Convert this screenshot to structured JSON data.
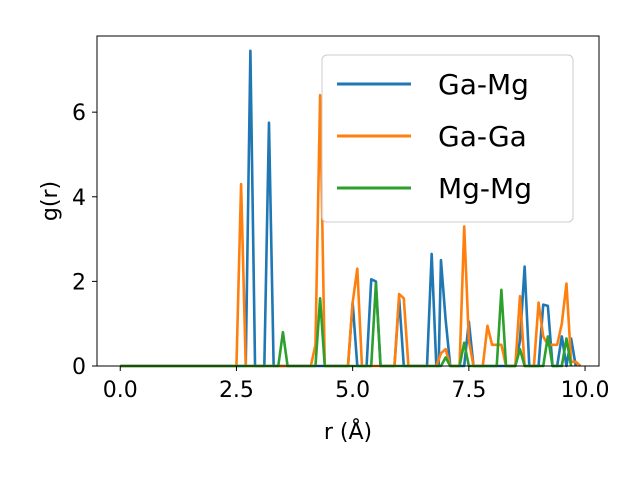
{
  "chart_data": {
    "type": "line",
    "title": "",
    "xlabel": "r (Å)",
    "ylabel": "g(r)",
    "xlim": [
      -0.5,
      10.3
    ],
    "ylim": [
      0,
      7.8
    ],
    "x_ticks": [
      0.0,
      2.5,
      5.0,
      7.5,
      10.0
    ],
    "x_tick_labels": [
      "0.0",
      "2.5",
      "5.0",
      "7.5",
      "10.0"
    ],
    "y_ticks": [
      0,
      2,
      4,
      6
    ],
    "y_tick_labels": [
      "0",
      "2",
      "4",
      "6"
    ],
    "grid": false,
    "legend_position": "top-right",
    "series": [
      {
        "name": "Ga-Mg",
        "color": "#1f77b4",
        "points": [
          [
            0.0,
            0
          ],
          [
            2.7,
            0
          ],
          [
            2.8,
            7.45
          ],
          [
            2.9,
            0
          ],
          [
            3.1,
            0
          ],
          [
            3.2,
            5.75
          ],
          [
            3.3,
            0
          ],
          [
            4.9,
            0
          ],
          [
            5.0,
            1.5
          ],
          [
            5.1,
            0
          ],
          [
            5.3,
            0
          ],
          [
            5.4,
            2.05
          ],
          [
            5.5,
            2.0
          ],
          [
            5.6,
            0
          ],
          [
            5.9,
            0
          ],
          [
            6.0,
            1.6
          ],
          [
            6.1,
            0
          ],
          [
            6.6,
            0
          ],
          [
            6.7,
            2.65
          ],
          [
            6.8,
            0
          ],
          [
            6.85,
            0
          ],
          [
            6.9,
            2.5
          ],
          [
            7.0,
            1.1
          ],
          [
            7.1,
            0
          ],
          [
            7.4,
            0
          ],
          [
            7.5,
            1.05
          ],
          [
            7.6,
            0
          ],
          [
            8.5,
            0
          ],
          [
            8.6,
            0.6
          ],
          [
            8.7,
            2.35
          ],
          [
            8.8,
            0
          ],
          [
            9.0,
            0
          ],
          [
            9.1,
            1.45
          ],
          [
            9.2,
            1.42
          ],
          [
            9.3,
            0
          ],
          [
            9.4,
            0
          ],
          [
            9.5,
            0.7
          ],
          [
            9.6,
            0
          ],
          [
            9.7,
            0.65
          ],
          [
            9.8,
            0
          ]
        ]
      },
      {
        "name": "Ga-Ga",
        "color": "#ff7f0e",
        "points": [
          [
            0.0,
            0
          ],
          [
            2.5,
            0
          ],
          [
            2.6,
            4.3
          ],
          [
            2.7,
            0
          ],
          [
            4.1,
            0
          ],
          [
            4.2,
            0.5
          ],
          [
            4.3,
            6.4
          ],
          [
            4.4,
            0
          ],
          [
            4.9,
            0
          ],
          [
            5.0,
            1.5
          ],
          [
            5.1,
            2.3
          ],
          [
            5.2,
            0
          ],
          [
            5.9,
            0
          ],
          [
            6.0,
            1.7
          ],
          [
            6.1,
            1.6
          ],
          [
            6.2,
            0
          ],
          [
            6.8,
            0
          ],
          [
            6.9,
            0.3
          ],
          [
            7.0,
            0.4
          ],
          [
            7.1,
            0
          ],
          [
            7.3,
            0
          ],
          [
            7.4,
            3.3
          ],
          [
            7.5,
            0.6
          ],
          [
            7.6,
            0
          ],
          [
            7.8,
            0
          ],
          [
            7.9,
            0.95
          ],
          [
            8.0,
            0.5
          ],
          [
            8.1,
            0.5
          ],
          [
            8.2,
            0.5
          ],
          [
            8.3,
            0
          ],
          [
            8.5,
            0
          ],
          [
            8.6,
            1.65
          ],
          [
            8.7,
            0
          ],
          [
            8.9,
            0
          ],
          [
            9.0,
            1.5
          ],
          [
            9.1,
            0.7
          ],
          [
            9.2,
            0.5
          ],
          [
            9.4,
            0.5
          ],
          [
            9.5,
            1.0
          ],
          [
            9.6,
            1.95
          ],
          [
            9.7,
            0.1
          ],
          [
            9.8,
            0.1
          ],
          [
            9.9,
            0
          ]
        ]
      },
      {
        "name": "Mg-Mg",
        "color": "#2ca02c",
        "points": [
          [
            0.0,
            0
          ],
          [
            3.4,
            0
          ],
          [
            3.5,
            0.8
          ],
          [
            3.6,
            0
          ],
          [
            4.2,
            0
          ],
          [
            4.3,
            1.6
          ],
          [
            4.4,
            0
          ],
          [
            5.4,
            0
          ],
          [
            5.5,
            1.95
          ],
          [
            5.6,
            0
          ],
          [
            6.9,
            0
          ],
          [
            7.0,
            0.2
          ],
          [
            7.1,
            0
          ],
          [
            7.3,
            0
          ],
          [
            7.4,
            0.55
          ],
          [
            7.5,
            0
          ],
          [
            8.1,
            0
          ],
          [
            8.2,
            1.8
          ],
          [
            8.3,
            0
          ],
          [
            8.5,
            0
          ],
          [
            8.6,
            0.4
          ],
          [
            8.7,
            0
          ],
          [
            9.1,
            0
          ],
          [
            9.2,
            0.7
          ],
          [
            9.3,
            0
          ],
          [
            9.5,
            0
          ],
          [
            9.6,
            0.65
          ],
          [
            9.7,
            0
          ]
        ]
      }
    ]
  }
}
